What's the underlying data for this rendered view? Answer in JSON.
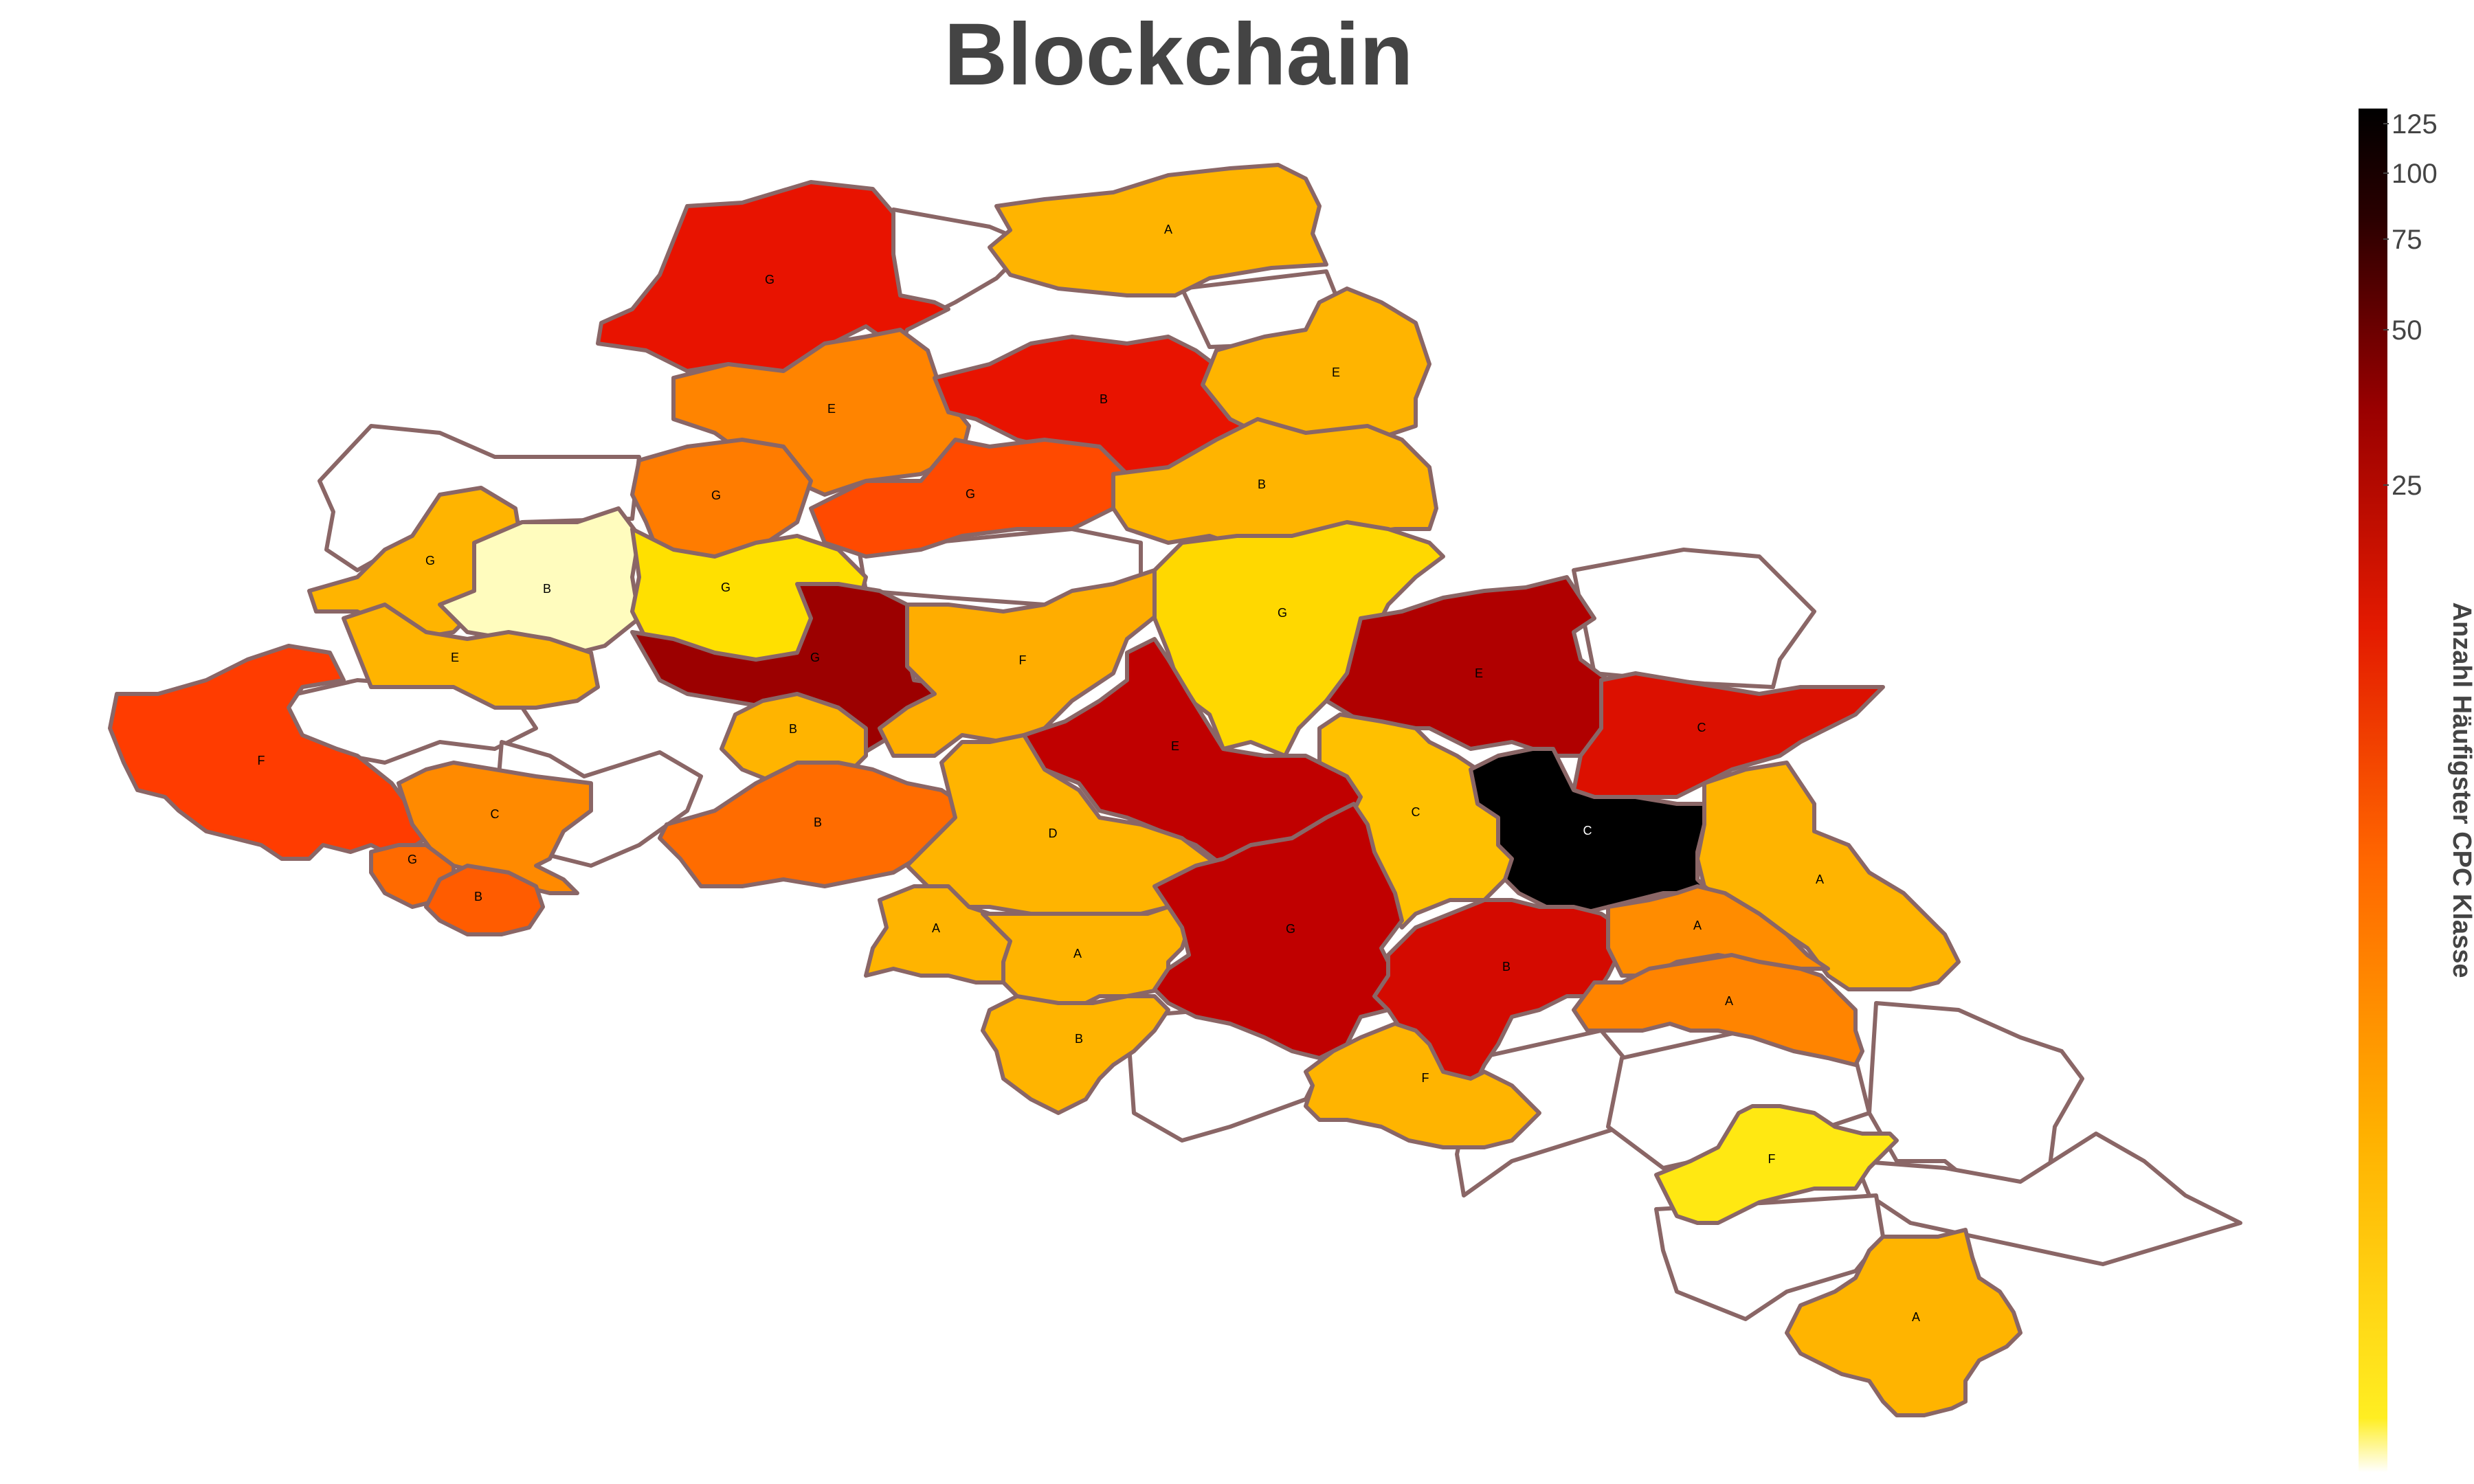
{
  "title": "Blockchain",
  "colorbar": {
    "title": "Anzahl Häufigster CPC Klasse",
    "ticks": [
      "125",
      "100",
      "75",
      "50",
      "25"
    ],
    "scale": "log",
    "colors": [
      "#ffffff",
      "#ffee22",
      "#ffb000",
      "#ff6600",
      "#e31a00",
      "#990000",
      "#2a0000",
      "#000000"
    ]
  },
  "outline_color": "#8a6666",
  "no_data_color": "#ffffff",
  "regions": [
    {
      "id": "north-g",
      "label": "G",
      "fill": "#e81300"
    },
    {
      "id": "north-a",
      "label": "A",
      "fill": "#ffb400"
    },
    {
      "id": "north-e-west",
      "label": "E",
      "fill": "#ff8400"
    },
    {
      "id": "north-b",
      "label": "B",
      "fill": "#e81300"
    },
    {
      "id": "northeast-e",
      "label": "E",
      "fill": "#ffb400"
    },
    {
      "id": "west-g-orange",
      "label": "G",
      "fill": "#ff7c00"
    },
    {
      "id": "central-g-red",
      "label": "G",
      "fill": "#ff4a00"
    },
    {
      "id": "east-b",
      "label": "B",
      "fill": "#ffb400"
    },
    {
      "id": "far-west-g",
      "label": "G",
      "fill": "#ffb400"
    },
    {
      "id": "pale-b",
      "label": "B",
      "fill": "#fffcbe"
    },
    {
      "id": "yellow-g",
      "label": "G",
      "fill": "#ffe000"
    },
    {
      "id": "west-e",
      "label": "E",
      "fill": "#ffb400"
    },
    {
      "id": "darkred-strip",
      "label": "G",
      "fill": "#9c0000"
    },
    {
      "id": "center-f",
      "label": "F",
      "fill": "#ffad00"
    },
    {
      "id": "center-g-yellow",
      "label": "G",
      "fill": "#ffd800"
    },
    {
      "id": "east-e",
      "label": "E",
      "fill": "#b00000"
    },
    {
      "id": "east-c-red",
      "label": "C",
      "fill": "#dc1000"
    },
    {
      "id": "far-west-f",
      "label": "F",
      "fill": "#ff3c00"
    },
    {
      "id": "west-c",
      "label": "C",
      "fill": "#ff8a00"
    },
    {
      "id": "west-g-small",
      "label": "G",
      "fill": "#ff6a00"
    },
    {
      "id": "west-b-small",
      "label": "B",
      "fill": "#ff5c00"
    },
    {
      "id": "mid-b-small",
      "label": "B",
      "fill": "#ffb400"
    },
    {
      "id": "mid-b",
      "label": "B",
      "fill": "#ff6c00"
    },
    {
      "id": "center-e",
      "label": "E",
      "fill": "#c00000"
    },
    {
      "id": "center-d",
      "label": "D",
      "fill": "#ffb400"
    },
    {
      "id": "center-c-yellow",
      "label": "C",
      "fill": "#ffc000"
    },
    {
      "id": "center-c-black",
      "label": "C",
      "fill": "#000000"
    },
    {
      "id": "east-a",
      "label": "A",
      "fill": "#ffb400"
    },
    {
      "id": "south-a-1",
      "label": "A",
      "fill": "#ffb400"
    },
    {
      "id": "south-a-2",
      "label": "A",
      "fill": "#ffb400"
    },
    {
      "id": "south-g",
      "label": "G",
      "fill": "#c00000"
    },
    {
      "id": "south-b-red",
      "label": "B",
      "fill": "#d40a00"
    },
    {
      "id": "south-a-orange",
      "label": "A",
      "fill": "#ff8c00"
    },
    {
      "id": "south-a-orange-2",
      "label": "A",
      "fill": "#ff8400"
    },
    {
      "id": "south-b",
      "label": "B",
      "fill": "#ffb400"
    },
    {
      "id": "south-f",
      "label": "F",
      "fill": "#ffb400"
    },
    {
      "id": "south-f-yellow",
      "label": "F",
      "fill": "#ffe812"
    },
    {
      "id": "south-a-far",
      "label": "A",
      "fill": "#ffb400"
    }
  ]
}
